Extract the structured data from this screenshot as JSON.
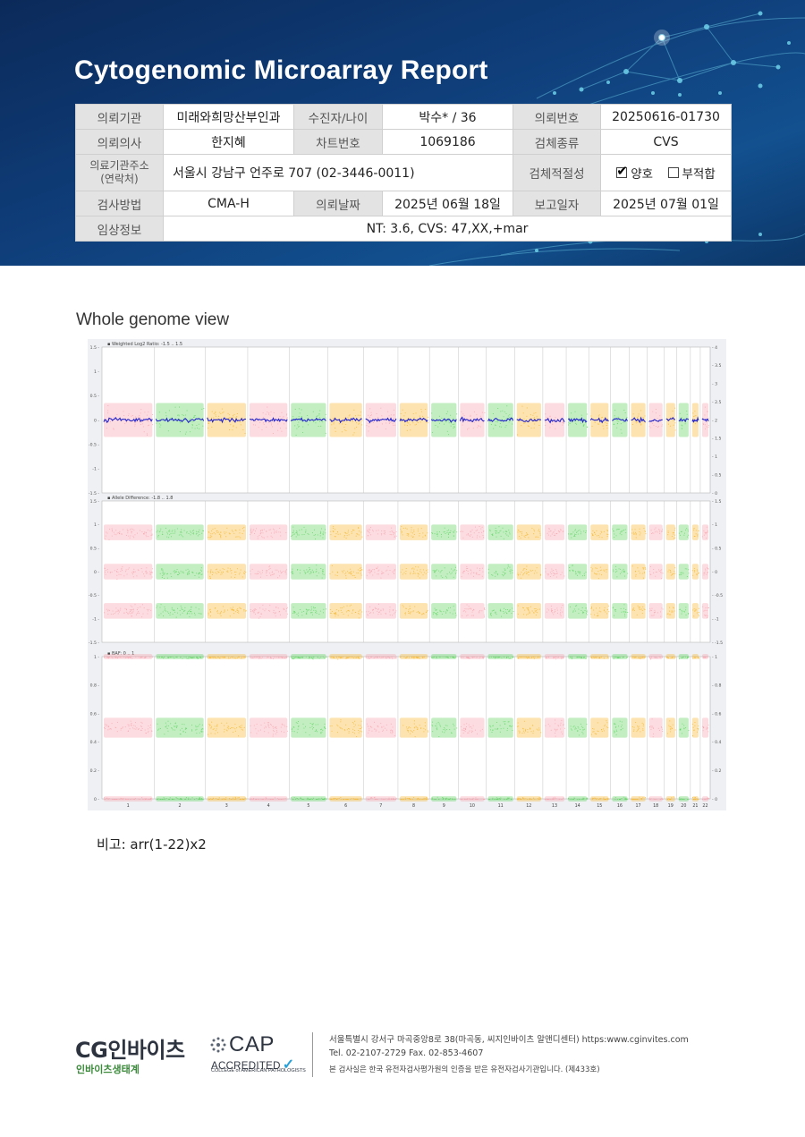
{
  "header": {
    "title": "Cytogenomic Microarray Report"
  },
  "info": {
    "row1": {
      "l1": "의뢰기관",
      "v1": "미래와희망산부인과",
      "l2": "수진자/나이",
      "v2": "박수* / 36",
      "l3": "의뢰번호",
      "v3": "20250616-01730"
    },
    "row2": {
      "l1": "의뢰의사",
      "v1": "한지혜",
      "l2": "차트번호",
      "v2": "1069186",
      "l3": "검체종류",
      "v3": "CVS"
    },
    "row3": {
      "l1": "의료기관주소\n(연락처)",
      "v1": "서울시 강남구 언주로 707 (02-3446-0011)",
      "l3": "검체적절성",
      "opt1": "양호",
      "opt2": "부적합"
    },
    "row4": {
      "l1": "검사방법",
      "v1": "CMA-H",
      "l2": "의뢰날짜",
      "v2": "2025년 06월 18일",
      "l3": "보고일자",
      "v3": "2025년 07월 01일"
    },
    "row5": {
      "l1": "임상정보",
      "v1": "NT: 3.6, CVS: 47,XX,+mar"
    }
  },
  "section_title": "Whole genome view",
  "chart_data": {
    "type": "scatter",
    "chromosomes": [
      "1",
      "2",
      "3",
      "4",
      "5",
      "6",
      "7",
      "8",
      "9",
      "10",
      "11",
      "12",
      "13",
      "14",
      "15",
      "16",
      "17",
      "18",
      "19",
      "20",
      "21",
      "22"
    ],
    "chrom_widths": [
      58,
      57,
      47,
      46,
      43,
      40,
      38,
      35,
      32,
      31,
      32,
      31,
      26,
      25,
      24,
      21,
      20,
      19,
      14,
      15,
      11,
      11
    ],
    "chrom_colors": [
      "pink",
      "green",
      "orange",
      "pink",
      "green",
      "orange",
      "pink",
      "orange",
      "green",
      "pink",
      "green",
      "orange",
      "pink",
      "green",
      "orange",
      "green",
      "orange",
      "pink",
      "orange",
      "green",
      "orange",
      "pink"
    ],
    "colors": {
      "pink": "#f6a3ae",
      "green": "#5fd35f",
      "orange": "#f7b52c",
      "blue": "#2424cc"
    },
    "panels": [
      {
        "label": "Weighted Log2 Ratio: -1.5 .. 1.5",
        "ylim": [
          -1.5,
          1.5
        ],
        "left_ticks": [
          "1.5",
          "1",
          "0.5",
          "0",
          "-0.5",
          "-1",
          "-1.5"
        ],
        "right_ticks": [
          "4",
          "3.5",
          "3",
          "2.5",
          "2",
          "1.5",
          "1",
          "0.5",
          "0"
        ],
        "bands": [
          0
        ]
      },
      {
        "label": "Allele Difference: -1.8 .. 1.8",
        "ylim": [
          -1.8,
          1.8
        ],
        "left_ticks": [
          "1.5",
          "1",
          "0.5",
          "0",
          "-0.5",
          "-1",
          "-1.5"
        ],
        "right_ticks": [
          "1.5",
          "1",
          "0.5",
          "0",
          "-0.5",
          "-1",
          "-1.5"
        ],
        "bands": [
          1,
          0,
          -1
        ]
      },
      {
        "label": "BAF: 0 .. 1",
        "ylim": [
          0,
          1
        ],
        "left_ticks": [
          "1",
          "0.8",
          "0.6",
          "0.4",
          "0.2",
          "0"
        ],
        "right_ticks": [
          "1",
          "0.8",
          "0.6",
          "0.4",
          "0.2",
          "0"
        ],
        "bands": [
          1,
          0.5,
          0
        ]
      }
    ]
  },
  "note": "비고: arr(1-22)x2",
  "footer": {
    "logo": "CG인바이츠",
    "logo_sub": "인바이츠생태계",
    "cap": "CAP",
    "cap_accredited": "ACCREDITED",
    "cap_college": "COLLEGE of AMERICAN PATHOLOGISTS",
    "address": "서울특별시 강서구 마곡중앙8로 38(마곡동, 씨지인바이츠 알앤디센터)  https:www.cginvites.com",
    "tel": "Tel. 02-2107-2729   Fax. 02-853-4607",
    "cert": "본 검사실은 한국 유전자검사평가원의 인증을 받은 유전자검사기관입니다. (제433호)"
  }
}
